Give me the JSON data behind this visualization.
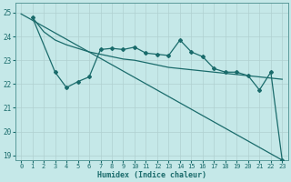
{
  "xlabel": "Humidex (Indice chaleur)",
  "background_color": "#c5e8e8",
  "grid_color": "#b0d0d0",
  "line_color": "#1a6b6b",
  "xlim": [
    -0.5,
    23.5
  ],
  "ylim": [
    18.8,
    25.4
  ],
  "yticks": [
    19,
    20,
    21,
    22,
    23,
    24,
    25
  ],
  "xticks": [
    0,
    1,
    2,
    3,
    4,
    5,
    6,
    7,
    8,
    9,
    10,
    11,
    12,
    13,
    14,
    15,
    16,
    17,
    18,
    19,
    20,
    21,
    22,
    23
  ],
  "line1_x": [
    0,
    23
  ],
  "line1_y": [
    24.95,
    18.8
  ],
  "line2_x": [
    1,
    2,
    3,
    4,
    5,
    6,
    7,
    8,
    9,
    10,
    11,
    12,
    13,
    14,
    15,
    16,
    17,
    18,
    19,
    20,
    21,
    22,
    23
  ],
  "line2_y": [
    24.8,
    24.2,
    23.85,
    23.65,
    23.5,
    23.35,
    23.25,
    23.15,
    23.05,
    23.0,
    22.9,
    22.8,
    22.7,
    22.65,
    22.6,
    22.55,
    22.5,
    22.45,
    22.4,
    22.35,
    22.3,
    22.25,
    22.2
  ],
  "line3_x": [
    1,
    3,
    4,
    5,
    6,
    7,
    8,
    9,
    10,
    11,
    12,
    13,
    14,
    15,
    16,
    17,
    18,
    19,
    20,
    21,
    22,
    23
  ],
  "line3_y": [
    24.8,
    22.5,
    21.85,
    22.1,
    22.3,
    23.45,
    23.5,
    23.45,
    23.55,
    23.3,
    23.25,
    23.2,
    23.85,
    23.35,
    23.15,
    22.65,
    22.5,
    22.5,
    22.35,
    21.75,
    22.5,
    18.8
  ]
}
